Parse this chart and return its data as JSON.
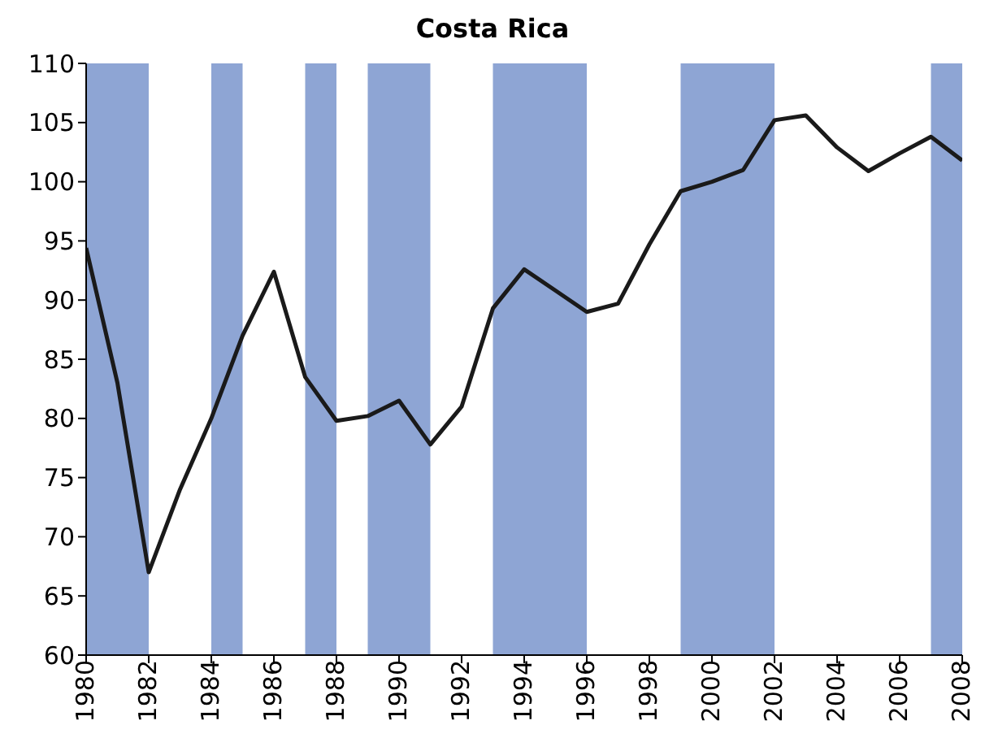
{
  "chart_data": {
    "type": "line",
    "title": "Costa Rica",
    "x": [
      1980,
      1981,
      1982,
      1983,
      1984,
      1985,
      1986,
      1987,
      1988,
      1989,
      1990,
      1991,
      1992,
      1993,
      1994,
      1995,
      1996,
      1997,
      1998,
      1999,
      2000,
      2001,
      2002,
      2003,
      2004,
      2005,
      2006,
      2007,
      2008
    ],
    "series": [
      {
        "color": "#1a1a1a",
        "values": [
          94.4,
          83,
          67,
          74,
          80,
          87,
          92.4,
          83.5,
          79.8,
          80.2,
          81.5,
          77.8,
          81,
          89.3,
          92.6,
          90.8,
          89,
          89.7,
          94.7,
          99.2,
          100,
          101,
          105.2,
          105.6,
          102.9,
          100.9,
          102.4,
          103.8,
          101.8
        ]
      }
    ],
    "xlim": [
      1980,
      2008
    ],
    "xticks": [
      1980,
      1982,
      1984,
      1986,
      1988,
      1990,
      1992,
      1994,
      1996,
      1998,
      2000,
      2002,
      2004,
      2006,
      2008
    ],
    "ylim": [
      60,
      110
    ],
    "yticks": [
      60,
      65,
      70,
      75,
      80,
      85,
      90,
      95,
      100,
      105,
      110
    ],
    "bands": [
      {
        "axis": "x",
        "from": 1980,
        "to": 1982,
        "color": "#8ea5d4"
      },
      {
        "axis": "x",
        "from": 1984,
        "to": 1985,
        "color": "#8ea5d4"
      },
      {
        "axis": "x",
        "from": 1987,
        "to": 1988,
        "color": "#8ea5d4"
      },
      {
        "axis": "x",
        "from": 1989,
        "to": 1991,
        "color": "#8ea5d4"
      },
      {
        "axis": "x",
        "from": 1993,
        "to": 1996,
        "color": "#8ea5d4"
      },
      {
        "axis": "x",
        "from": 1999,
        "to": 2002,
        "color": "#8ea5d4"
      },
      {
        "axis": "x",
        "from": 2007,
        "to": 2008,
        "color": "#8ea5d4"
      }
    ],
    "grid": false,
    "legend": false,
    "marker": "none",
    "line_style": "solid"
  }
}
